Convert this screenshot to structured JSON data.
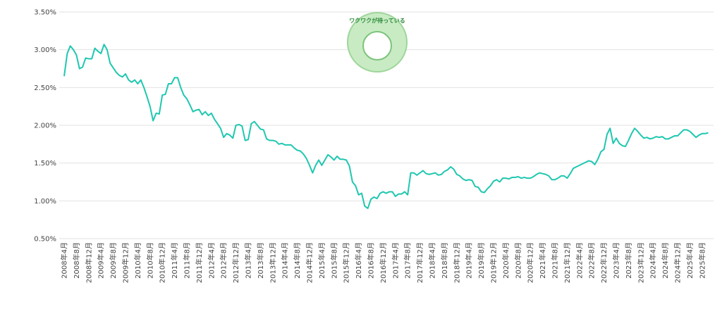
{
  "chart_data": {
    "type": "line",
    "logo": {
      "text": "ワクワクが待っている"
    },
    "categories": [
      "2008年4月",
      null,
      null,
      null,
      "2008年8月",
      null,
      null,
      null,
      "2008年12月",
      null,
      null,
      null,
      "2009年4月",
      null,
      null,
      null,
      "2009年8月",
      null,
      null,
      null,
      "2009年12月",
      null,
      null,
      null,
      "2010年4月",
      null,
      null,
      null,
      "2010年8月",
      null,
      null,
      null,
      "2010年12月",
      null,
      null,
      null,
      "2011年4月",
      null,
      null,
      null,
      "2011年8月",
      null,
      null,
      null,
      "2011年12月",
      null,
      null,
      null,
      "2012年4月",
      null,
      null,
      null,
      "2012年8月",
      null,
      null,
      null,
      "2012年12月",
      null,
      null,
      null,
      "2013年4月",
      null,
      null,
      null,
      "2013年8月",
      null,
      null,
      null,
      "2013年12月",
      null,
      null,
      null,
      "2014年4月",
      null,
      null,
      null,
      "2014年8月",
      null,
      null,
      null,
      "2014年12月",
      null,
      null,
      null,
      "2015年4月",
      null,
      null,
      null,
      "2015年8月",
      null,
      null,
      null,
      "2015年12月",
      null,
      null,
      null,
      "2016年4月",
      null,
      null,
      null,
      "2016年8月",
      null,
      null,
      null,
      "2016年12月",
      null,
      null,
      null,
      "2017年4月",
      null,
      null,
      null,
      "2017年8月",
      null,
      null,
      null,
      "2017年12月",
      null,
      null,
      null,
      "2018年4月",
      null,
      null,
      null,
      "2018年8月",
      null,
      null,
      null,
      "2018年12月",
      null,
      null,
      null,
      "2019年4月",
      null,
      null,
      null,
      "2019年8月",
      null,
      null,
      null,
      "2019年12月",
      null,
      null,
      null,
      "2020年4月",
      null,
      null,
      null,
      "2020年8月",
      null,
      null,
      null,
      "2020年12月",
      null,
      null,
      null,
      "2021年4月",
      null,
      null,
      null,
      "2021年8月",
      null,
      null,
      null,
      "2021年12月",
      null,
      null,
      null,
      "2022年4月",
      null,
      null,
      null,
      "2022年8月",
      null,
      null,
      null,
      "2022年12月",
      null,
      null,
      null,
      "2023年4月",
      null,
      null,
      null,
      "2023年8月",
      null,
      null,
      null,
      "2023年12月",
      null,
      null,
      null,
      "2024年4月",
      null,
      null,
      null,
      "2024年8月",
      null,
      null,
      null,
      "2024年12月",
      null,
      null,
      null,
      "2025年4月",
      null,
      null,
      null,
      "2025年8月",
      null,
      null
    ],
    "series": [
      {
        "color": "#1fc7b0",
        "values": [
          2.65,
          2.95,
          3.05,
          3.0,
          2.93,
          2.75,
          2.77,
          2.89,
          2.88,
          2.88,
          3.02,
          2.98,
          2.95,
          3.07,
          3.0,
          2.82,
          2.76,
          2.7,
          2.66,
          2.64,
          2.68,
          2.6,
          2.57,
          2.6,
          2.55,
          2.6,
          2.5,
          2.38,
          2.25,
          2.06,
          2.16,
          2.15,
          2.4,
          2.41,
          2.55,
          2.55,
          2.63,
          2.63,
          2.5,
          2.4,
          2.35,
          2.27,
          2.18,
          2.2,
          2.21,
          2.14,
          2.18,
          2.13,
          2.16,
          2.08,
          2.02,
          1.96,
          1.84,
          1.89,
          1.87,
          1.83,
          2.0,
          2.01,
          1.99,
          1.8,
          1.81,
          2.02,
          2.05,
          2.0,
          1.95,
          1.94,
          1.82,
          1.8,
          1.8,
          1.79,
          1.75,
          1.76,
          1.74,
          1.74,
          1.74,
          1.7,
          1.67,
          1.66,
          1.62,
          1.56,
          1.47,
          1.37,
          1.47,
          1.54,
          1.47,
          1.54,
          1.61,
          1.58,
          1.54,
          1.59,
          1.55,
          1.55,
          1.54,
          1.46,
          1.25,
          1.2,
          1.08,
          1.1,
          0.93,
          0.9,
          1.02,
          1.05,
          1.03,
          1.1,
          1.12,
          1.1,
          1.12,
          1.12,
          1.06,
          1.09,
          1.09,
          1.12,
          1.08,
          1.37,
          1.37,
          1.34,
          1.37,
          1.4,
          1.36,
          1.35,
          1.36,
          1.37,
          1.34,
          1.35,
          1.39,
          1.41,
          1.45,
          1.42,
          1.35,
          1.33,
          1.29,
          1.27,
          1.28,
          1.27,
          1.19,
          1.18,
          1.12,
          1.11,
          1.16,
          1.2,
          1.26,
          1.28,
          1.25,
          1.3,
          1.3,
          1.29,
          1.31,
          1.31,
          1.32,
          1.3,
          1.31,
          1.3,
          1.3,
          1.32,
          1.35,
          1.37,
          1.36,
          1.35,
          1.33,
          1.28,
          1.28,
          1.3,
          1.33,
          1.33,
          1.3,
          1.36,
          1.43,
          1.45,
          1.47,
          1.49,
          1.51,
          1.53,
          1.52,
          1.48,
          1.55,
          1.65,
          1.68,
          1.88,
          1.96,
          1.76,
          1.83,
          1.76,
          1.73,
          1.72,
          1.8,
          1.89,
          1.96,
          1.92,
          1.87,
          1.83,
          1.84,
          1.82,
          1.83,
          1.85,
          1.84,
          1.85,
          1.82,
          1.82,
          1.84,
          1.86,
          1.86,
          1.9,
          1.94,
          1.94,
          1.92,
          1.88,
          1.84,
          1.87,
          1.89,
          1.89,
          1.9
        ]
      }
    ],
    "ylim": [
      0.5,
      3.5
    ],
    "yticks": [
      {
        "value": 0.5,
        "label": "0.50%"
      },
      {
        "value": 1.0,
        "label": "1.00%"
      },
      {
        "value": 1.5,
        "label": "1.50%"
      },
      {
        "value": 2.0,
        "label": "2.00%"
      },
      {
        "value": 2.5,
        "label": "2.50%"
      },
      {
        "value": 3.0,
        "label": "3.00%"
      },
      {
        "value": 3.5,
        "label": "3.50%"
      }
    ],
    "grid": true
  }
}
